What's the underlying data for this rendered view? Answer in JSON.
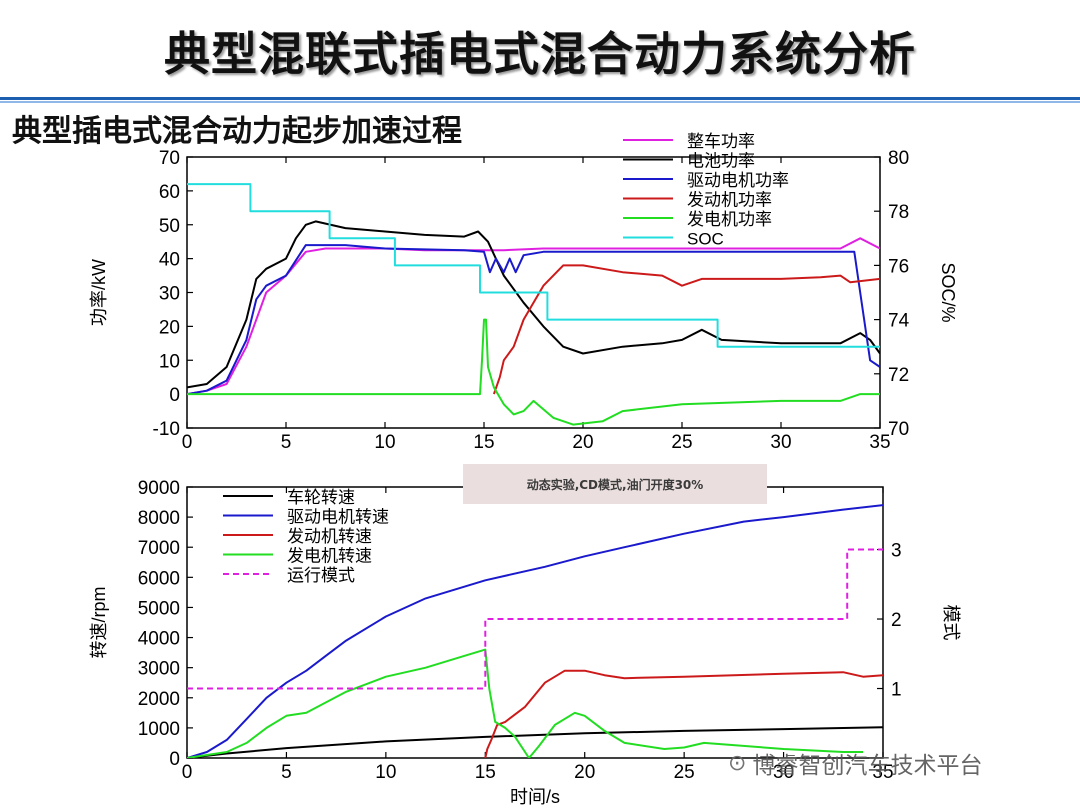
{
  "slide": {
    "title": "典型混联式插电式混合动力系统分析",
    "subtitle": "典型插电式混合动力起步加速过程"
  },
  "annotation": "动态实验,CD模式,油门开度30%",
  "watermark": {
    "icon": "wechat-icon",
    "text": "博睿智创汽车技术平台"
  },
  "colors": {
    "title_rule": "#1c5fb0",
    "magenta": "#e020e0",
    "black": "#000000",
    "blue": "#1a1acc",
    "red": "#cc1a1a",
    "green": "#22dd22",
    "cyan": "#22dddd"
  },
  "chart_data": [
    {
      "type": "line",
      "title": "",
      "xlabel": "",
      "ylabel": "功率/kW",
      "y2label": "SOC/%",
      "xlim": [
        0,
        35
      ],
      "ylim": [
        -10,
        70
      ],
      "y2lim": [
        70,
        80
      ],
      "xticks": [
        "0",
        "5",
        "10",
        "15",
        "20",
        "25",
        "30",
        "35"
      ],
      "yticks": [
        "-10",
        "0",
        "10",
        "20",
        "30",
        "40",
        "50",
        "60",
        "70"
      ],
      "y2ticks": [
        "70",
        "72",
        "74",
        "76",
        "78",
        "80"
      ],
      "legend_position": "top-right",
      "series": [
        {
          "name": "整车功率",
          "color": "#e020e0",
          "axis": "left",
          "x": [
            0,
            1,
            2,
            3,
            3.5,
            4,
            5,
            6,
            7,
            8,
            10,
            12,
            14,
            15,
            16,
            18,
            20,
            25,
            30,
            33,
            34,
            35
          ],
          "y": [
            0,
            1,
            3,
            14,
            22,
            30,
            35,
            42,
            43,
            43,
            43,
            42.5,
            42.5,
            42.5,
            42.5,
            43,
            43,
            43,
            43,
            43,
            46,
            43
          ]
        },
        {
          "name": "电池功率",
          "color": "#000000",
          "axis": "left",
          "x": [
            0,
            1,
            2,
            3,
            3.5,
            4,
            5,
            5.5,
            6,
            6.5,
            8,
            10,
            12,
            14,
            14.7,
            15.2,
            16,
            17,
            18,
            19,
            20,
            22,
            24,
            25,
            26,
            27,
            30,
            33,
            34,
            34.5,
            35
          ],
          "y": [
            2,
            3,
            8,
            22,
            34,
            37,
            40,
            46,
            50,
            51,
            49,
            48,
            47,
            46.5,
            48,
            45,
            35,
            27,
            20,
            14,
            12,
            14,
            15,
            16,
            19,
            16,
            15,
            15,
            18,
            16,
            12
          ]
        },
        {
          "name": "驱动电机功率",
          "color": "#1a1acc",
          "axis": "left",
          "x": [
            0,
            1,
            2,
            3,
            3.5,
            4,
            5,
            6,
            8,
            10,
            14,
            15,
            15.3,
            15.6,
            16,
            16.3,
            16.6,
            17,
            18,
            20,
            25,
            30,
            33,
            33.7,
            34,
            34.5,
            35
          ],
          "y": [
            0,
            1,
            4,
            16,
            28,
            32,
            35,
            44,
            44,
            43,
            42.5,
            42,
            36,
            40,
            36,
            40,
            36,
            41,
            42,
            42,
            42,
            42,
            42,
            42,
            30,
            10,
            8
          ]
        },
        {
          "name": "发动机功率",
          "color": "#cc1a1a",
          "axis": "left",
          "x": [
            15.5,
            15.8,
            16,
            16.5,
            17,
            18,
            19,
            20,
            22,
            24,
            25,
            25.5,
            26,
            28,
            30,
            32,
            33,
            33.5,
            35
          ],
          "y": [
            0,
            5,
            10,
            14,
            22,
            32,
            38,
            38,
            36,
            35,
            32,
            33,
            34,
            34,
            34,
            34.5,
            35,
            33,
            34
          ]
        },
        {
          "name": "发电机功率",
          "color": "#22dd22",
          "axis": "left",
          "x": [
            0,
            14.8,
            14.9,
            15.0,
            15.1,
            15.2,
            15.5,
            16.0,
            16.5,
            17.0,
            17.5,
            18.5,
            19.5,
            21,
            22,
            25,
            30,
            33,
            34,
            35
          ],
          "y": [
            0,
            0,
            10,
            22,
            22,
            8,
            2,
            -3,
            -6,
            -5,
            -2,
            -7,
            -9,
            -8,
            -5,
            -3,
            -2,
            -2,
            0,
            0
          ]
        },
        {
          "name": "SOC",
          "color": "#22dddd",
          "axis": "right",
          "x": [
            0,
            3.2,
            3.2,
            7.2,
            7.2,
            10.5,
            10.5,
            14.8,
            14.8,
            18.2,
            18.2,
            26.8,
            26.8,
            35
          ],
          "y": [
            79,
            79,
            78,
            78,
            77,
            77,
            76,
            76,
            75,
            75,
            74,
            74,
            73,
            73
          ]
        }
      ]
    },
    {
      "type": "line",
      "title": "",
      "xlabel": "时间/s",
      "ylabel": "转速/rpm",
      "y2label": "模式",
      "xlim": [
        0,
        35
      ],
      "ylim": [
        0,
        9000
      ],
      "y2lim": [
        0,
        3.9
      ],
      "xticks": [
        "0",
        "5",
        "10",
        "15",
        "20",
        "25",
        "30",
        "35"
      ],
      "yticks": [
        "0",
        "1000",
        "2000",
        "3000",
        "4000",
        "5000",
        "6000",
        "7000",
        "8000",
        "9000"
      ],
      "y2ticks": [
        "1",
        "2",
        "3"
      ],
      "legend_position": "top-left",
      "series": [
        {
          "name": "车轮转速",
          "color": "#000000",
          "axis": "left",
          "x": [
            0,
            2,
            5,
            10,
            15,
            20,
            25,
            30,
            35
          ],
          "y": [
            0,
            150,
            330,
            550,
            700,
            820,
            900,
            960,
            1020
          ]
        },
        {
          "name": "驱动电机转速",
          "color": "#1a1acc",
          "axis": "left",
          "x": [
            0,
            1,
            2,
            3,
            4,
            5,
            6,
            7,
            8,
            10,
            12,
            15,
            18,
            20,
            22,
            25,
            28,
            30,
            33,
            35
          ],
          "y": [
            0,
            200,
            600,
            1300,
            2000,
            2500,
            2900,
            3400,
            3900,
            4700,
            5300,
            5900,
            6350,
            6700,
            7000,
            7450,
            7850,
            8000,
            8250,
            8400
          ]
        },
        {
          "name": "发动机转速",
          "color": "#cc1a1a",
          "axis": "left",
          "x": [
            15,
            15.1,
            15.3,
            15.6,
            16,
            17,
            18,
            19,
            20,
            21,
            22,
            25,
            30,
            33,
            34,
            35
          ],
          "y": [
            0,
            300,
            600,
            1100,
            1200,
            1700,
            2500,
            2900,
            2900,
            2750,
            2650,
            2700,
            2800,
            2850,
            2700,
            2750
          ]
        },
        {
          "name": "发电机转速",
          "color": "#22dd22",
          "axis": "left",
          "x": [
            0,
            2,
            3,
            4,
            5,
            6,
            8,
            10,
            12,
            14,
            15,
            15.2,
            15.5,
            16,
            16.5,
            17.2,
            17.7,
            18.5,
            19.5,
            20,
            21,
            22,
            24,
            25,
            26,
            30,
            33,
            34
          ],
          "y": [
            0,
            200,
            500,
            1000,
            1400,
            1500,
            2200,
            2700,
            3000,
            3400,
            3600,
            2300,
            1200,
            1000,
            700,
            0,
            400,
            1100,
            1500,
            1400,
            900,
            500,
            300,
            350,
            500,
            300,
            200,
            200
          ]
        },
        {
          "name": "运行模式",
          "color": "#e020e0",
          "axis": "right",
          "dashed": true,
          "x": [
            0,
            15,
            15,
            33.2,
            33.2,
            35
          ],
          "y": [
            1,
            1,
            2,
            2,
            3,
            3
          ]
        }
      ]
    }
  ]
}
